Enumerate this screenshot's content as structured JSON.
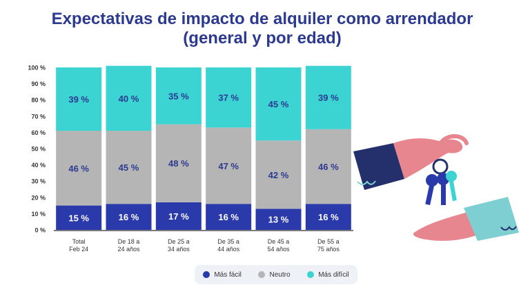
{
  "title_line1": "Expectativas de impacto de alquiler como arrendador",
  "title_line2": "(general y por edad)",
  "colors": {
    "mas_facil": "#2b3aab",
    "neutro": "#b5b5b5",
    "mas_dificil": "#3cd3d3",
    "title": "#2b3990"
  },
  "chart_data": {
    "type": "bar",
    "stacked": true,
    "title": "Expectativas de impacto de alquiler como arrendador (general y por edad)",
    "categories": [
      [
        "Total",
        "Feb 24"
      ],
      [
        "De 18 a",
        "24 años"
      ],
      [
        "De 25 a",
        "34 años"
      ],
      [
        "De 35 a",
        "44 años"
      ],
      [
        "De 45 a",
        "54 años"
      ],
      [
        "De 55 a",
        "75 años"
      ]
    ],
    "series": [
      {
        "name": "Más fácil",
        "values": [
          15,
          16,
          17,
          16,
          13,
          16
        ],
        "labels": [
          "15 %",
          "16 %",
          "17 %",
          "16 %",
          "13 %",
          "16 %"
        ]
      },
      {
        "name": "Neutro",
        "values": [
          46,
          45,
          48,
          47,
          42,
          46
        ],
        "labels": [
          "46 %",
          "45 %",
          "48 %",
          "47 %",
          "42 %",
          "46 %"
        ]
      },
      {
        "name": "Más difícil",
        "values": [
          39,
          40,
          35,
          37,
          45,
          39
        ],
        "labels": [
          "39 %",
          "40 %",
          "35 %",
          "37 %",
          "45 %",
          "39 %"
        ]
      }
    ],
    "yticks": [
      "0 %",
      "10 %",
      "20 %",
      "30 %",
      "40 %",
      "50 %",
      "60 %",
      "70 %",
      "80 %",
      "90 %",
      "100 %"
    ],
    "ylim": [
      0,
      100
    ],
    "legend": "bottom-center"
  },
  "legend": [
    {
      "label": "Más fácil",
      "color": "#2b3aab"
    },
    {
      "label": "Neutro",
      "color": "#b5b5b5"
    },
    {
      "label": "Más difícil",
      "color": "#3cd3d3"
    }
  ]
}
